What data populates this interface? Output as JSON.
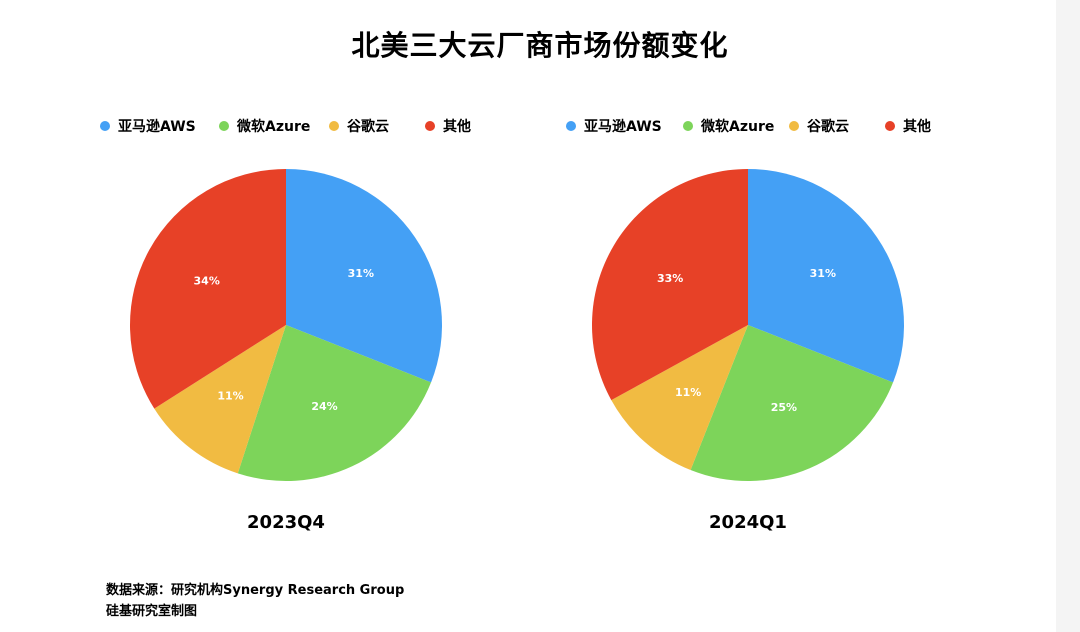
{
  "title": "北美三大云厂商市场份额变化",
  "colors": {
    "aws": "#44a0f5",
    "azure": "#7dd45a",
    "google": "#f1bb42",
    "other": "#e74127"
  },
  "chart_data": [
    {
      "type": "pie",
      "title": "2023Q4",
      "legend": [
        "亚马逊AWS",
        "微软Azure",
        "谷歌云",
        "其他"
      ],
      "legend_position": "top",
      "labels": [
        "亚马逊AWS",
        "微软Azure",
        "谷歌云",
        "其他"
      ],
      "values": [
        31,
        24,
        11,
        34
      ],
      "value_labels": [
        "31%",
        "24%",
        "11%",
        "34%"
      ],
      "start": "12 o'clock",
      "direction": "clockwise"
    },
    {
      "type": "pie",
      "title": "2024Q1",
      "legend": [
        "亚马逊AWS",
        "微软Azure",
        "谷歌云",
        "其他"
      ],
      "legend_position": "top",
      "labels": [
        "亚马逊AWS",
        "微软Azure",
        "谷歌云",
        "其他"
      ],
      "values": [
        31,
        25,
        11,
        33
      ],
      "value_labels": [
        "31%",
        "25%",
        "11%",
        "33%"
      ],
      "start": "12 o'clock",
      "direction": "clockwise"
    }
  ],
  "source_line1": "数据来源：研究机构Synergy Research Group",
  "source_line2": "硅基研究室制图"
}
